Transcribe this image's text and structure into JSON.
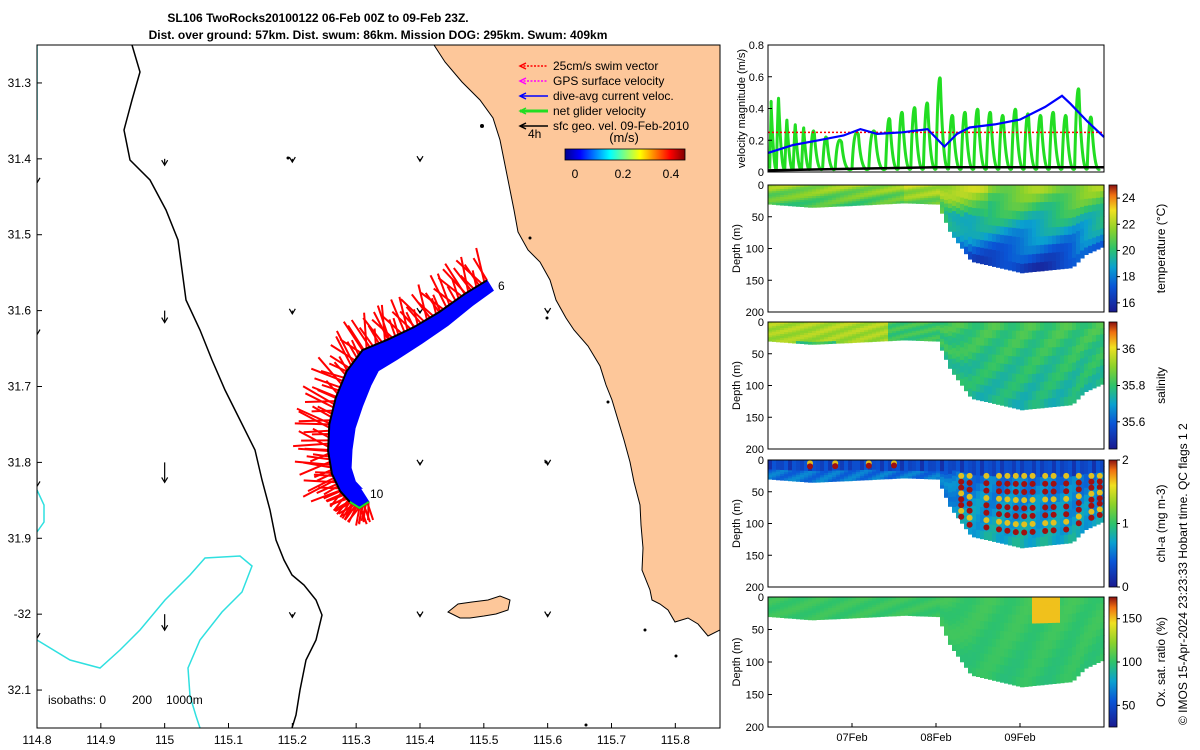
{
  "title": {
    "line1": "SL106 TwoRocks20100122 06-Feb 00Z to 09-Feb 23Z.",
    "line2": "Dist. over ground: 57km. Dist. swum: 86km. Mission DOG: 295km. Swum: 409km"
  },
  "footer": "© IMOS 15-Apr-2024 23:23:33 Hobart time. QC flags 1  2",
  "colors": {
    "land": "#fdc79a",
    "swim": "#ff0000",
    "current": "#0000ff",
    "net": "#22dd22",
    "isobath200": "#000000",
    "isobath1000": "#2fe0e0"
  },
  "chart_data": [
    {
      "type": "map",
      "name": "track-map",
      "xlim": [
        114.8,
        115.87
      ],
      "ylim": [
        -32.15,
        -31.25
      ],
      "x_ticks": [
        114.8,
        114.9,
        115,
        115.1,
        115.2,
        115.3,
        115.4,
        115.5,
        115.6,
        115.7,
        115.8
      ],
      "x_tick_labels": [
        "114.8",
        "114.9",
        "115",
        "115.1",
        "115.2",
        "115.3",
        "115.4",
        "115.5",
        "115.6",
        "115.7",
        "115.8"
      ],
      "y_ticks": [
        -31.3,
        -31.4,
        -31.5,
        -31.6,
        -31.7,
        -31.8,
        -31.9,
        -32,
        -32.1
      ],
      "y_tick_labels": [
        "31.3",
        "31.4",
        "31.5",
        "31.6",
        "31.7",
        "31.8",
        "31.9",
        "-32",
        "32.1"
      ],
      "legend": [
        {
          "label": "25cm/s swim vector",
          "color": "#ff0000"
        },
        {
          "label": "GPS surface velocity",
          "color": "#ff00ff"
        },
        {
          "label": "dive-avg current veloc.",
          "color": "#0000ff"
        },
        {
          "label": "net glider velocity",
          "color": "#22dd22"
        },
        {
          "label": "sfc geo. vel. 09-Feb-2010",
          "color": "#000000"
        }
      ],
      "colorbar": {
        "label": "(m/s)",
        "range": [
          0,
          0.5
        ],
        "tick_values": [
          0,
          0.2,
          0.4
        ],
        "tick_labels": [
          "0",
          "0.2",
          "0.4"
        ],
        "note": "4h"
      },
      "track": {
        "lon": [
          115.505,
          115.47,
          115.43,
          115.39,
          115.35,
          115.31,
          115.285,
          115.268,
          115.258,
          115.256,
          115.262,
          115.275,
          115.29,
          115.305,
          115.32
        ],
        "lat": [
          -31.56,
          -31.578,
          -31.602,
          -31.622,
          -31.638,
          -31.652,
          -31.68,
          -31.715,
          -31.75,
          -31.785,
          -31.815,
          -31.838,
          -31.852,
          -31.86,
          -31.852
        ],
        "start_label": "6",
        "end_label": "10"
      },
      "isobaths": {
        "label": "isobaths: 0",
        "values": [
          "200",
          "1000m"
        ]
      },
      "sfc_vectors": [
        {
          "lon": 114.8,
          "lat": -31.4,
          "u": 0,
          "v": -0.3
        },
        {
          "lon": 114.8,
          "lat": -31.6,
          "u": 0,
          "v": -0.3
        },
        {
          "lon": 114.8,
          "lat": -31.8,
          "u": 0,
          "v": -0.3
        },
        {
          "lon": 114.8,
          "lat": -32,
          "u": 0,
          "v": -0.3
        },
        {
          "lon": 115,
          "lat": -31.4,
          "u": 0,
          "v": -0.08
        },
        {
          "lon": 115,
          "lat": -31.6,
          "u": 0,
          "v": -0.15
        },
        {
          "lon": 115,
          "lat": -31.8,
          "u": 0,
          "v": -0.25
        },
        {
          "lon": 115,
          "lat": -32,
          "u": 0,
          "v": -0.2
        },
        {
          "lon": 115.2,
          "lat": -31.4,
          "u": 0,
          "v": -0.04
        },
        {
          "lon": 115.2,
          "lat": -31.6,
          "u": 0,
          "v": -0.04
        },
        {
          "lon": 115.2,
          "lat": -32,
          "u": 0,
          "v": -0.04
        },
        {
          "lon": 115.4,
          "lat": -31.4,
          "u": 0,
          "v": -0.03
        },
        {
          "lon": 115.4,
          "lat": -31.6,
          "u": 0,
          "v": -0.03
        },
        {
          "lon": 115.4,
          "lat": -31.8,
          "u": 0,
          "v": -0.03
        },
        {
          "lon": 115.4,
          "lat": -32,
          "u": 0,
          "v": -0.03
        },
        {
          "lon": 115.6,
          "lat": -31.6,
          "u": 0,
          "v": -0.03
        },
        {
          "lon": 115.6,
          "lat": -31.8,
          "u": 0,
          "v": -0.03
        },
        {
          "lon": 115.6,
          "lat": -32,
          "u": 0,
          "v": -0.03
        }
      ]
    },
    {
      "type": "line",
      "name": "velocity-timeseries",
      "ylabel": "velocity magnitude (m/s)",
      "ylim": [
        0,
        0.8
      ],
      "y_ticks": [
        0,
        0.2,
        0.4,
        0.6,
        0.8
      ],
      "y_tick_labels": [
        "0",
        "0.2",
        "0.4",
        "0.6",
        "0.8"
      ],
      "x_range_days": [
        0,
        4
      ],
      "series": [
        {
          "name": "dive-avg current",
          "color": "#0000ff",
          "x": [
            0,
            0.3,
            0.6,
            0.9,
            1.1,
            1.3,
            1.6,
            1.9,
            2.1,
            2.25,
            2.4,
            2.7,
            3.0,
            3.3,
            3.5,
            3.6,
            3.8,
            4.0
          ],
          "y": [
            0.12,
            0.17,
            0.2,
            0.23,
            0.27,
            0.24,
            0.25,
            0.27,
            0.16,
            0.24,
            0.28,
            0.3,
            0.33,
            0.41,
            0.48,
            0.43,
            0.32,
            0.22
          ]
        },
        {
          "name": "swim vector",
          "color": "#ff0000",
          "x": [
            0,
            1,
            2,
            3,
            4
          ],
          "y": [
            0.25,
            0.25,
            0.25,
            0.25,
            0.25
          ]
        },
        {
          "name": "net glider velocity",
          "color": "#22dd22",
          "x": [
            0.02,
            0.1,
            0.2,
            0.3,
            0.4,
            0.5,
            0.65,
            0.8,
            1.0,
            1.2,
            1.4,
            1.55,
            1.7,
            1.85,
            2.0,
            2.15,
            2.3,
            2.45,
            2.6,
            2.75,
            2.9,
            3.05,
            3.2,
            3.35,
            3.5,
            3.65,
            3.8,
            3.95
          ],
          "y": [
            0.45,
            0.47,
            0.33,
            0.3,
            0.28,
            0.26,
            0.22,
            0.2,
            0.25,
            0.26,
            0.34,
            0.38,
            0.41,
            0.44,
            0.6,
            0.36,
            0.38,
            0.4,
            0.38,
            0.36,
            0.4,
            0.37,
            0.36,
            0.38,
            0.36,
            0.53,
            0.35,
            0.27
          ]
        },
        {
          "name": "sfc geo. velocity",
          "color": "#000000",
          "x": [
            0,
            1,
            2,
            3,
            4
          ],
          "y": [
            0.01,
            0.02,
            0.03,
            0.03,
            0.03
          ]
        }
      ]
    },
    {
      "type": "heatmap",
      "name": "temperature-section",
      "ylabel": "Depth (m)",
      "clabel": "temperature (°C)",
      "ylim": [
        0,
        200
      ],
      "y_ticks": [
        0,
        50,
        100,
        150,
        200
      ],
      "y_tick_labels": [
        "0",
        "50",
        "100",
        "150",
        "200"
      ],
      "crange": [
        15.3,
        25
      ],
      "ctick_values": [
        16,
        18,
        20,
        22,
        24
      ],
      "ctick_labels": [
        "16",
        "18",
        "20",
        "22",
        "24"
      ],
      "max_depth_profile": {
        "days": [
          0,
          0.5,
          1.0,
          1.6,
          2.0,
          2.15,
          2.4,
          3.0,
          3.6,
          3.75,
          4.0
        ],
        "depth": [
          30,
          35,
          32,
          28,
          30,
          75,
          120,
          138,
          130,
          110,
          95
        ]
      },
      "surface_value": 21.5,
      "deep_value": 16.5
    },
    {
      "type": "heatmap",
      "name": "salinity-section",
      "ylabel": "Depth (m)",
      "clabel": "salinity",
      "ylim": [
        0,
        200
      ],
      "y_ticks": [
        0,
        50,
        100,
        150,
        200
      ],
      "y_tick_labels": [
        "0",
        "50",
        "100",
        "150",
        "200"
      ],
      "crange": [
        35.45,
        36.15
      ],
      "ctick_values": [
        35.6,
        35.8,
        36
      ],
      "ctick_labels": [
        "35.6",
        "35.8",
        "36"
      ],
      "surface_value": 35.82,
      "deep_value": 35.72
    },
    {
      "type": "heatmap",
      "name": "chla-section",
      "ylabel": "Depth (m)",
      "clabel": "chl-a (mg m-3)",
      "ylim": [
        0,
        200
      ],
      "y_ticks": [
        0,
        50,
        100,
        150,
        200
      ],
      "y_tick_labels": [
        "0",
        "50",
        "100",
        "150",
        "200"
      ],
      "crange": [
        0,
        2
      ],
      "ctick_values": [
        0,
        1,
        2
      ],
      "ctick_labels": [
        "0",
        "1",
        "2"
      ],
      "surface_value": 0.1,
      "deep_value": 0.5
    },
    {
      "type": "heatmap",
      "name": "oxygen-section",
      "ylabel": "Depth (m)",
      "clabel": "Ox. sat. ratio (%)",
      "ylim": [
        0,
        200
      ],
      "y_ticks": [
        0,
        50,
        100,
        150,
        200
      ],
      "y_tick_labels": [
        "0",
        "50",
        "100",
        "150",
        "200"
      ],
      "crange": [
        25,
        175
      ],
      "ctick_values": [
        50,
        100,
        150
      ],
      "ctick_labels": [
        "50",
        "100",
        "150"
      ],
      "surface_value": 105,
      "deep_value": 100,
      "x_tick_days": [
        1,
        2,
        3
      ],
      "x_tick_labels": [
        "07Feb",
        "08Feb",
        "09Feb"
      ]
    }
  ]
}
